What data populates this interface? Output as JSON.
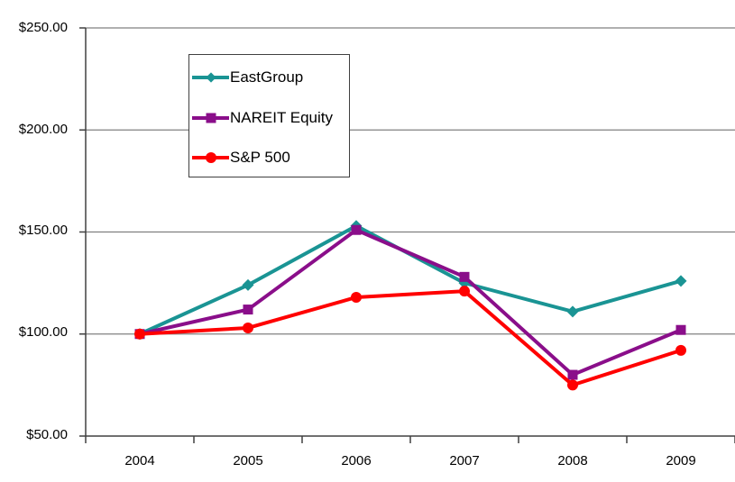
{
  "chart_data": {
    "type": "line",
    "title": "",
    "xlabel": "",
    "ylabel": "",
    "categories": [
      "2004",
      "2005",
      "2006",
      "2007",
      "2008",
      "2009"
    ],
    "series": [
      {
        "name": "EastGroup",
        "color": "#1A9494",
        "marker": "diamond",
        "values": [
          100,
          124,
          153,
          125,
          111,
          126
        ]
      },
      {
        "name": "NAREIT Equity",
        "color": "#8A0E8A",
        "marker": "square",
        "values": [
          100,
          112,
          151,
          128,
          80,
          102
        ]
      },
      {
        "name": "S&P 500",
        "color": "#FF0000",
        "marker": "circle",
        "values": [
          100,
          103,
          118,
          121,
          75,
          92
        ]
      }
    ],
    "ylim": [
      50,
      250
    ],
    "y_tick_step": 50,
    "y_tick_labels": [
      "$250.00",
      "$200.00",
      "$150.00",
      "$100.00",
      "$50.00"
    ],
    "grid": "horizontal",
    "grid_color": "#808080",
    "axis_color": "#404040",
    "background": "#FFFFFF",
    "legend_position": "inside-upper-left",
    "line_width": 4
  }
}
